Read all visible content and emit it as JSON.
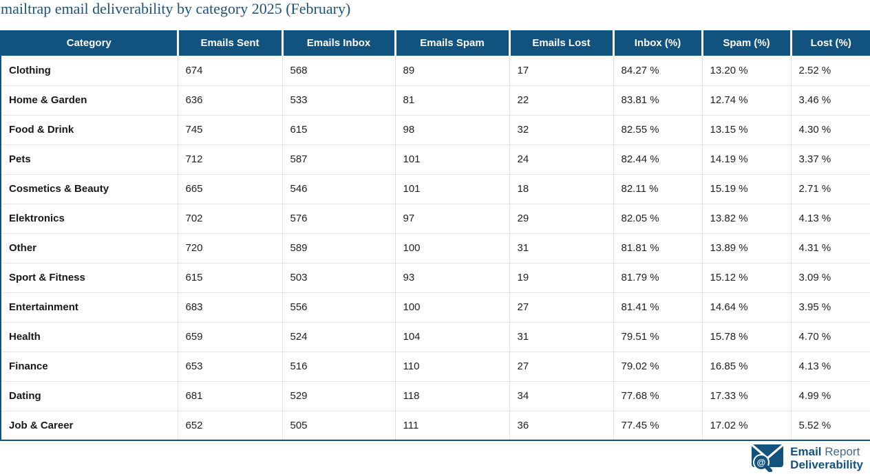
{
  "page_title": "mailtrap email deliverability by category 2025 (February)",
  "chart_data": {
    "type": "table",
    "title": "mailtrap email deliverability by category 2025 (February)",
    "columns": [
      "Category",
      "Emails Sent",
      "Emails Inbox",
      "Emails Spam",
      "Emails Lost",
      "Inbox (%)",
      "Spam (%)",
      "Lost (%)"
    ],
    "rows": [
      [
        "Clothing",
        "674",
        "568",
        "89",
        "17",
        "84.27 %",
        "13.20 %",
        "2.52 %"
      ],
      [
        "Home & Garden",
        "636",
        "533",
        "81",
        "22",
        "83.81 %",
        "12.74 %",
        "3.46 %"
      ],
      [
        "Food & Drink",
        "745",
        "615",
        "98",
        "32",
        "82.55 %",
        "13.15 %",
        "4.30 %"
      ],
      [
        "Pets",
        "712",
        "587",
        "101",
        "24",
        "82.44 %",
        "14.19 %",
        "3.37 %"
      ],
      [
        "Cosmetics & Beauty",
        "665",
        "546",
        "101",
        "18",
        "82.11 %",
        "15.19 %",
        "2.71 %"
      ],
      [
        "Elektronics",
        "702",
        "576",
        "97",
        "29",
        "82.05 %",
        "13.82 %",
        "4.13 %"
      ],
      [
        "Other",
        "720",
        "589",
        "100",
        "31",
        "81.81 %",
        "13.89 %",
        "4.31 %"
      ],
      [
        "Sport & Fitness",
        "615",
        "503",
        "93",
        "19",
        "81.79 %",
        "15.12 %",
        "3.09 %"
      ],
      [
        "Entertainment",
        "683",
        "556",
        "100",
        "27",
        "81.41 %",
        "14.64 %",
        "3.95 %"
      ],
      [
        "Health",
        "659",
        "524",
        "104",
        "31",
        "79.51 %",
        "15.78 %",
        "4.70 %"
      ],
      [
        "Finance",
        "653",
        "516",
        "110",
        "27",
        "79.02 %",
        "16.85 %",
        "4.13 %"
      ],
      [
        "Dating",
        "681",
        "529",
        "118",
        "34",
        "77.68 %",
        "17.33 %",
        "4.99 %"
      ],
      [
        "Job & Career",
        "652",
        "505",
        "111",
        "36",
        "77.45 %",
        "17.02 %",
        "5.52 %"
      ]
    ]
  },
  "logo": {
    "word1": "Email",
    "word2": "Report",
    "word3": "Deliverability",
    "icon": "envelope-magnifier-at-icon",
    "at_symbol": "@"
  },
  "colors": {
    "header_bg": "#11527e",
    "header_text": "#ffffff",
    "title_text": "#1d5379",
    "accent_border": "#11527e",
    "row_divider": "#e3e3e3",
    "body_text": "#212121",
    "logo_secondary_text": "#44688c"
  }
}
